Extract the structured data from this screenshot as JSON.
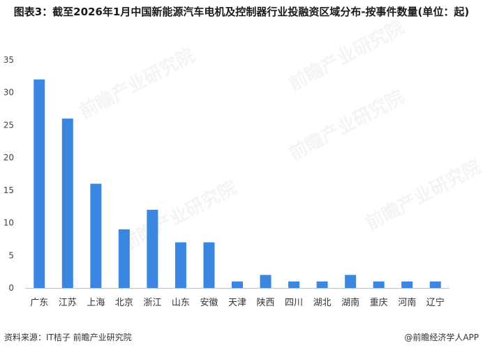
{
  "chart_data": {
    "type": "bar",
    "title": "图表3：截至2026年1月中国新能源汽车电机及控制器行业投融资区域分布-按事件数量(单位：起)",
    "categories": [
      "广东",
      "江苏",
      "上海",
      "北京",
      "浙江",
      "山东",
      "安徽",
      "天津",
      "陕西",
      "四川",
      "湖北",
      "湖南",
      "重庆",
      "河南",
      "辽宁"
    ],
    "values": [
      32,
      26,
      16,
      9,
      12,
      7,
      7,
      1,
      2,
      1,
      1,
      2,
      1,
      1,
      1
    ],
    "ylim": [
      0,
      35
    ],
    "yticks": [
      0,
      5,
      10,
      15,
      20,
      25,
      30,
      35
    ],
    "grid": false,
    "bar_color": "#3b86e0",
    "watermark": "前瞻产业研究院"
  },
  "footer": {
    "source": "资料来源：IT桔子 前瞻产业研究院",
    "brand": "@前瞻经济学人APP"
  }
}
